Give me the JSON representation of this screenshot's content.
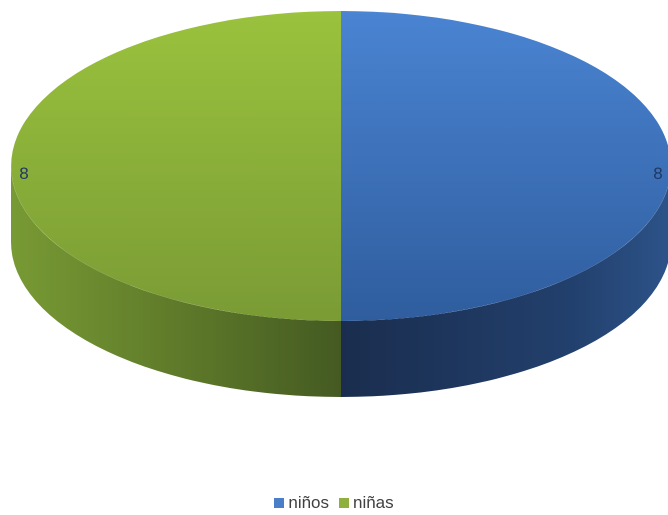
{
  "chart_data": {
    "type": "pie",
    "subtype": "3d",
    "categories": [
      "niños",
      "niñas"
    ],
    "values": [
      8,
      8
    ],
    "data_labels": [
      "8",
      "8"
    ],
    "colors": [
      "#4a7ec8",
      "#8fb03c"
    ],
    "legend_position": "bottom",
    "label_color": "#1f3864",
    "title": ""
  }
}
